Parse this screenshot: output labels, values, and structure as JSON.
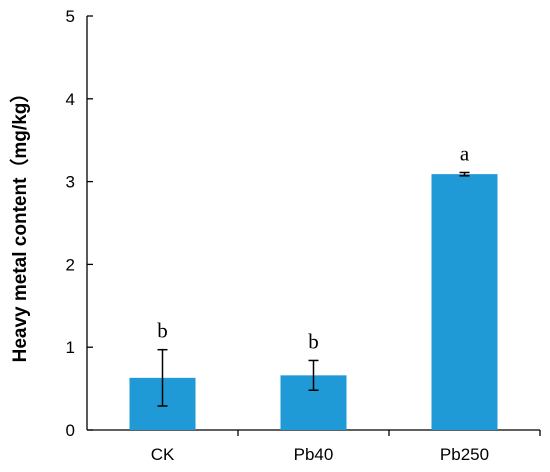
{
  "chart_data": {
    "type": "bar",
    "title": "",
    "xlabel": "",
    "ylabel": "Heavy metal content（mg/kg）",
    "categories": [
      "CK",
      "Pb40",
      "Pb250"
    ],
    "values": [
      0.63,
      0.66,
      3.09
    ],
    "errors": [
      0.34,
      0.18,
      0.02
    ],
    "significance_labels": [
      "b",
      "b",
      "a"
    ],
    "ylim": [
      0,
      5
    ],
    "yticks": [
      "0",
      "1",
      "2",
      "3",
      "4",
      "5"
    ],
    "grid": false,
    "legend": "none",
    "bar_color": "#1f9ad6"
  }
}
